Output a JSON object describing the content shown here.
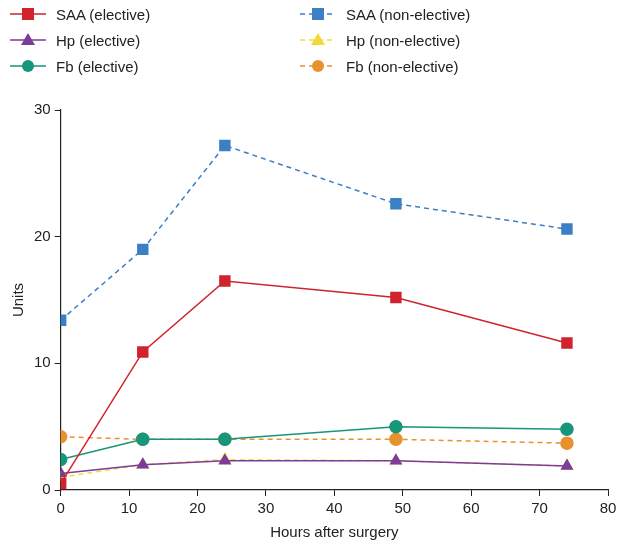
{
  "chart_data": {
    "type": "line",
    "x_label": "Hours after surgery",
    "y_label": "Units",
    "x": [
      0,
      12,
      24,
      49,
      74
    ],
    "xlim": [
      0,
      80
    ],
    "xticks": [
      0,
      10,
      20,
      30,
      40,
      50,
      60,
      70,
      80
    ],
    "ylim": [
      0,
      30
    ],
    "yticks": [
      0,
      10,
      20,
      30
    ],
    "grid": false,
    "legend": "top",
    "series": [
      {
        "name": "SAA (elective)",
        "color": "#d0232e",
        "marker": "square",
        "line_style": "solid",
        "values": [
          0.5,
          10.9,
          16.5,
          15.2,
          11.6
        ]
      },
      {
        "name": "SAA (non-elective)",
        "color": "#3b7fc4",
        "marker": "square",
        "line_style": "dashed",
        "values": [
          13.4,
          19.0,
          27.2,
          22.6,
          20.6
        ]
      },
      {
        "name": "Hp (elective)",
        "color": "#7d3c98",
        "marker": "triangle",
        "line_style": "solid",
        "values": [
          1.3,
          2.0,
          2.3,
          2.3,
          1.9
        ]
      },
      {
        "name": "Hp (non-elective)",
        "color": "#f2d93a",
        "marker": "triangle",
        "line_style": "dashed",
        "values": [
          1.0,
          2.0,
          2.4,
          2.3,
          1.9
        ]
      },
      {
        "name": "Fb (elective)",
        "color": "#17967a",
        "marker": "circle",
        "line_style": "solid",
        "values": [
          2.4,
          4.0,
          4.0,
          5.0,
          4.8
        ]
      },
      {
        "name": "Fb (non-elective)",
        "color": "#e8922e",
        "marker": "circle",
        "line_style": "dashed",
        "values": [
          4.2,
          4.0,
          4.0,
          4.0,
          3.7
        ]
      }
    ]
  }
}
